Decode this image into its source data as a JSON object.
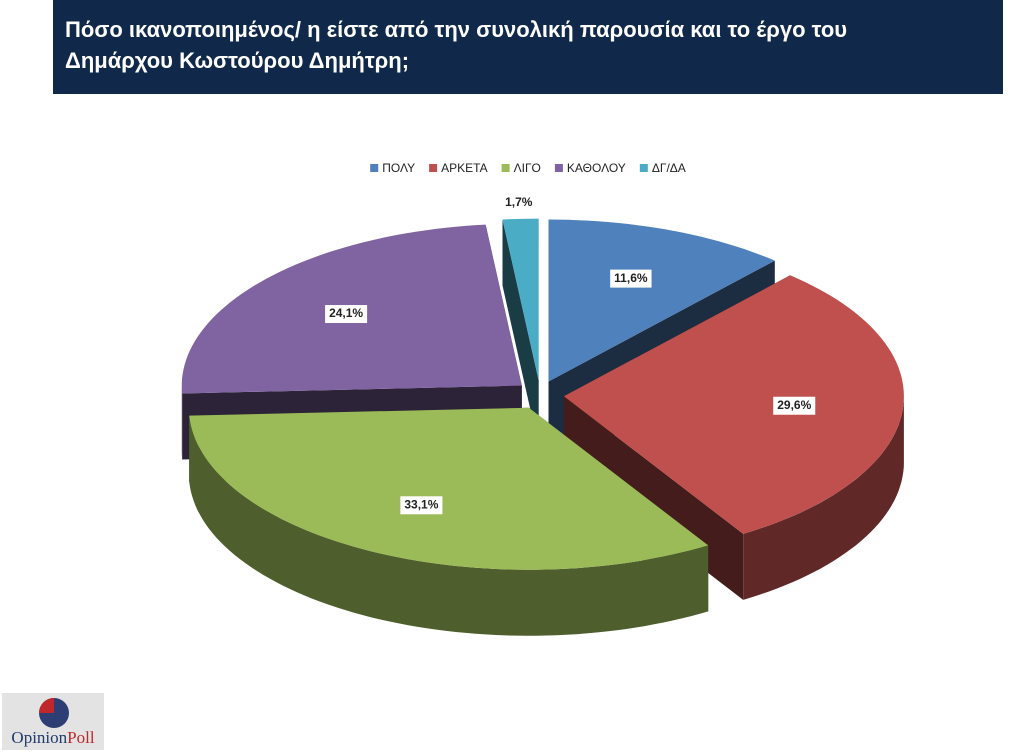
{
  "chart_data": {
    "type": "pie",
    "title": "Πόσο ικανοποιημένος/ η είστε από την συνολική παρουσία και το έργο του Δημάρχου Κωστούρου Δημήτρη;",
    "categories": [
      "ΠΟΛΥ",
      "ΑΡΚΕΤΑ",
      "ΛΙΓΟ",
      "ΚΑΘΟΛΟΥ",
      "ΔΓ/ΔΑ"
    ],
    "values": [
      11.6,
      29.6,
      33.1,
      24.1,
      1.7
    ],
    "value_labels": [
      "11,6%",
      "29,6%",
      "33,1%",
      "24,1%",
      "1,7%"
    ],
    "colors": [
      "#4f81bd",
      "#c0504d",
      "#9bbb59",
      "#8064a2",
      "#4bacc6"
    ],
    "legend": "top"
  },
  "logo": [
    "Opinion",
    "Poll"
  ]
}
